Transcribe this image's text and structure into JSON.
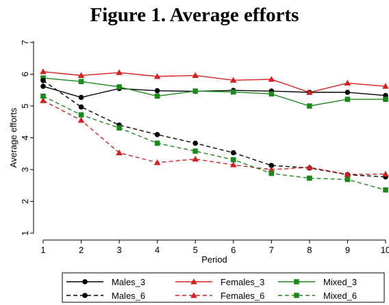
{
  "chart_data": {
    "type": "line",
    "title": "Figure 1. Average efforts",
    "xlabel": "Period",
    "ylabel": "Average efforts",
    "x": [
      1,
      2,
      3,
      4,
      5,
      6,
      7,
      8,
      9,
      10
    ],
    "x_tick_labels": [
      "1",
      "2",
      "3",
      "4",
      "5",
      "6",
      "7",
      "8",
      "9",
      "10"
    ],
    "xlim": [
      1,
      10
    ],
    "ylim": [
      1,
      7
    ],
    "y_ticks": [
      1,
      2,
      3,
      4,
      5,
      6,
      7
    ],
    "grid": false,
    "legend_position": "bottom",
    "series": [
      {
        "name": "Males_3",
        "color": "#000000",
        "dash": "solid",
        "marker": "circle",
        "values": [
          5.62,
          5.27,
          5.55,
          5.48,
          5.46,
          5.49,
          5.47,
          5.43,
          5.43,
          5.33
        ]
      },
      {
        "name": "Females_3",
        "color": "#d62020",
        "dash": "solid",
        "marker": "triangle",
        "values": [
          6.08,
          5.96,
          6.05,
          5.93,
          5.96,
          5.81,
          5.84,
          5.43,
          5.72,
          5.62
        ]
      },
      {
        "name": "Mixed_3",
        "color": "#1a8a1a",
        "dash": "solid",
        "marker": "square",
        "values": [
          5.88,
          5.77,
          5.6,
          5.31,
          5.47,
          5.44,
          5.38,
          5.0,
          5.21,
          5.21
        ]
      },
      {
        "name": "Males_6",
        "color": "#000000",
        "dash": "dashed",
        "marker": "circle",
        "values": [
          5.8,
          4.97,
          4.4,
          4.1,
          3.83,
          3.53,
          3.13,
          3.05,
          2.84,
          2.77
        ]
      },
      {
        "name": "Females_6",
        "color": "#d62020",
        "dash": "dashed",
        "marker": "triangle",
        "values": [
          5.17,
          4.55,
          3.53,
          3.22,
          3.33,
          3.15,
          3.0,
          3.07,
          2.85,
          2.86
        ]
      },
      {
        "name": "Mixed_6",
        "color": "#1a8a1a",
        "dash": "dashed",
        "marker": "square",
        "values": [
          5.31,
          4.72,
          4.31,
          3.83,
          3.58,
          3.31,
          2.88,
          2.73,
          2.69,
          2.36
        ]
      }
    ]
  }
}
